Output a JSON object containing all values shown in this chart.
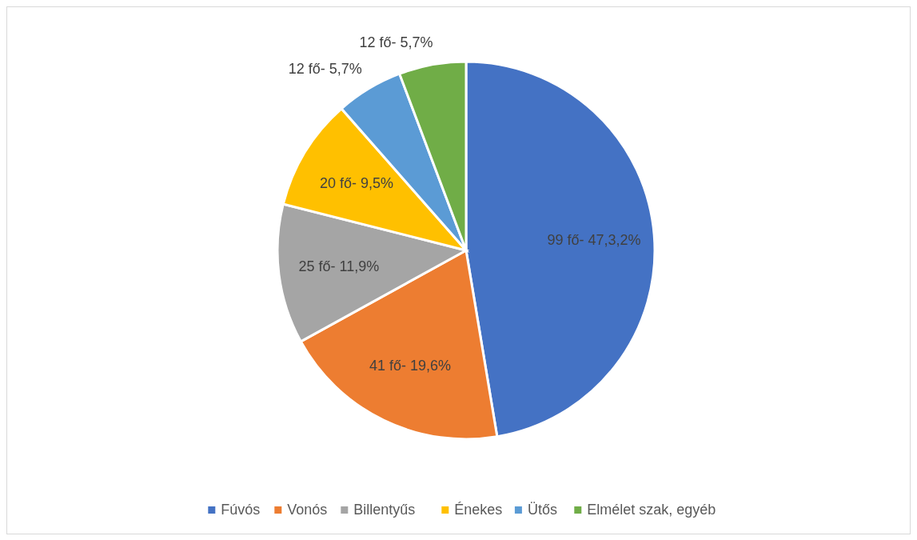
{
  "chart_data": {
    "type": "pie",
    "categories": [
      "Fúvós",
      "Vonós",
      "Billentyűs",
      "Énekes",
      "Ütős",
      "Elmélet szak, egyéb"
    ],
    "values": [
      99,
      41,
      25,
      20,
      12,
      12
    ],
    "colors": [
      "#4472c4",
      "#ed7d31",
      "#a5a5a5",
      "#ffc000",
      "#5b9bd5",
      "#70ad47"
    ],
    "value_labels": [
      "99 fő- 47,3,2%",
      "41 fő- 19,6%",
      "25 fő- 11,9%",
      "20 fő- 9,5%",
      "12 fő- 5,7%",
      "12 fő- 5,7%"
    ],
    "legend": "bottom"
  }
}
